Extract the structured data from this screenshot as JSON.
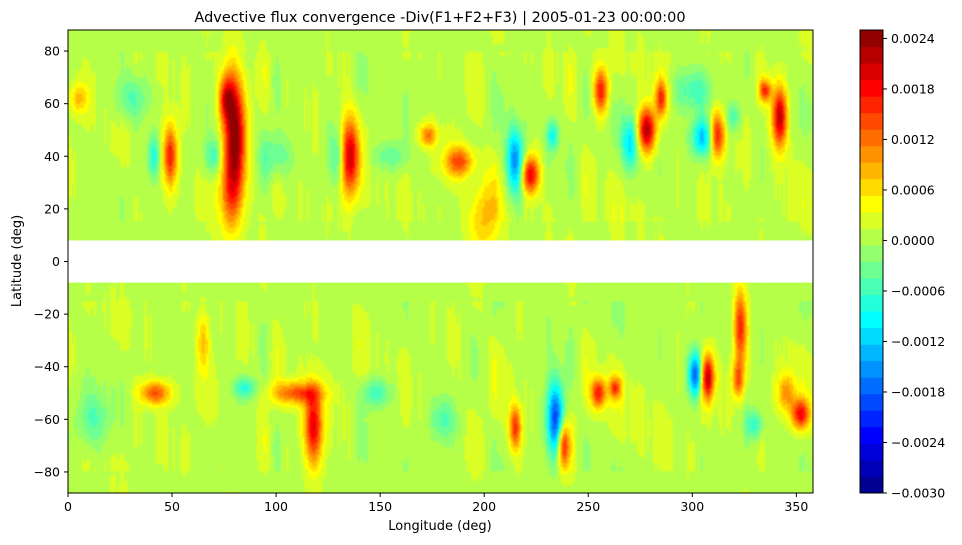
{
  "chart_data": {
    "type": "heatmap",
    "title": "Advective flux convergence -Div(F1+F2+F3) | 2005-01-23 00:00:00",
    "xlabel": "Longitude (deg)",
    "ylabel": "Latitude (deg)",
    "xlim": [
      0,
      358
    ],
    "ylim": [
      -88,
      88
    ],
    "xticks": [
      "0",
      "50",
      "100",
      "150",
      "200",
      "250",
      "300",
      "350"
    ],
    "yticks": [
      "80",
      "60",
      "40",
      "20",
      "0",
      "−20",
      "−40",
      "−60",
      "−80"
    ],
    "masked_lat_band": [
      -8,
      8
    ],
    "colorbar": {
      "colormap": "jet",
      "vmin": -0.003,
      "vmax": 0.0025,
      "ticks": [
        "0.0024",
        "0.0018",
        "0.0012",
        "0.0006",
        "0.0000",
        "−0.0006",
        "−0.0012",
        "−0.0018",
        "−0.0024",
        "−0.0030"
      ]
    },
    "background_value": 0.0001,
    "features": [
      {
        "lon": 80,
        "lat": 48,
        "dlon": 3.5,
        "dlat": 16,
        "value": 0.0024
      },
      {
        "lon": 76,
        "lat": 62,
        "dlon": 2.5,
        "dlat": 6,
        "value": 0.0014
      },
      {
        "lon": 78,
        "lat": 25,
        "dlon": 4,
        "dlat": 10,
        "value": 0.0009
      },
      {
        "lon": 135,
        "lat": 40,
        "dlon": 3,
        "dlat": 10,
        "value": 0.0022
      },
      {
        "lon": 130,
        "lat": 40,
        "dlon": 3,
        "dlat": 8,
        "value": -0.0008
      },
      {
        "lon": 49,
        "lat": 40,
        "dlon": 2.5,
        "dlat": 8,
        "value": 0.0016
      },
      {
        "lon": 41,
        "lat": 40,
        "dlon": 2,
        "dlat": 6,
        "value": -0.0009
      },
      {
        "lon": 70,
        "lat": 40,
        "dlon": 3,
        "dlat": 5,
        "value": -0.0007
      },
      {
        "lon": 215,
        "lat": 38,
        "dlon": 3,
        "dlat": 9,
        "value": -0.0017
      },
      {
        "lon": 222,
        "lat": 33,
        "dlon": 3,
        "dlat": 5,
        "value": 0.0019
      },
      {
        "lon": 233,
        "lat": 48,
        "dlon": 2,
        "dlat": 4,
        "value": -0.0009
      },
      {
        "lon": 200,
        "lat": 18,
        "dlon": 5,
        "dlat": 10,
        "value": 0.0007
      },
      {
        "lon": 188,
        "lat": 38,
        "dlon": 5,
        "dlat": 4,
        "value": 0.0013
      },
      {
        "lon": 173,
        "lat": 48,
        "dlon": 3,
        "dlat": 3,
        "value": 0.0011
      },
      {
        "lon": 256,
        "lat": 65,
        "dlon": 2.5,
        "dlat": 6,
        "value": 0.0016
      },
      {
        "lon": 278,
        "lat": 50,
        "dlon": 3,
        "dlat": 6,
        "value": 0.0022
      },
      {
        "lon": 285,
        "lat": 62,
        "dlon": 2,
        "dlat": 5,
        "value": 0.0015
      },
      {
        "lon": 270,
        "lat": 45,
        "dlon": 2.5,
        "dlat": 7,
        "value": -0.0012
      },
      {
        "lon": 305,
        "lat": 47,
        "dlon": 4,
        "dlat": 5,
        "value": -0.0013
      },
      {
        "lon": 312,
        "lat": 48,
        "dlon": 2.5,
        "dlat": 6,
        "value": 0.0018
      },
      {
        "lon": 320,
        "lat": 55,
        "dlon": 2.5,
        "dlat": 4,
        "value": -0.0006
      },
      {
        "lon": 342,
        "lat": 55,
        "dlon": 2.5,
        "dlat": 8,
        "value": 0.0021
      },
      {
        "lon": 335,
        "lat": 65,
        "dlon": 2,
        "dlat": 3,
        "value": 0.0015
      },
      {
        "lon": 300,
        "lat": 65,
        "dlon": 6,
        "dlat": 6,
        "value": -0.0007
      },
      {
        "lon": 30,
        "lat": 62,
        "dlon": 6,
        "dlat": 6,
        "value": -0.0006
      },
      {
        "lon": 5,
        "lat": 62,
        "dlon": 3,
        "dlat": 4,
        "value": 0.0007
      },
      {
        "lon": 118,
        "lat": -62,
        "dlon": 3,
        "dlat": 10,
        "value": 0.0019
      },
      {
        "lon": 110,
        "lat": -50,
        "dlon": 8,
        "dlat": 3,
        "value": 0.0013
      },
      {
        "lon": 85,
        "lat": -48,
        "dlon": 4,
        "dlat": 3,
        "value": -0.0008
      },
      {
        "lon": 42,
        "lat": -50,
        "dlon": 5,
        "dlat": 3,
        "value": 0.0013
      },
      {
        "lon": 65,
        "lat": -30,
        "dlon": 2,
        "dlat": 8,
        "value": 0.0007
      },
      {
        "lon": 234,
        "lat": -60,
        "dlon": 3,
        "dlat": 10,
        "value": -0.0021
      },
      {
        "lon": 238,
        "lat": -70,
        "dlon": 2,
        "dlat": 6,
        "value": 0.0018
      },
      {
        "lon": 215,
        "lat": -63,
        "dlon": 2,
        "dlat": 6,
        "value": 0.0015
      },
      {
        "lon": 255,
        "lat": -50,
        "dlon": 2.5,
        "dlat": 4,
        "value": 0.0016
      },
      {
        "lon": 263,
        "lat": -48,
        "dlon": 2,
        "dlat": 3,
        "value": 0.0013
      },
      {
        "lon": 302,
        "lat": -43,
        "dlon": 2.5,
        "dlat": 6,
        "value": -0.0021
      },
      {
        "lon": 307,
        "lat": -44,
        "dlon": 2.5,
        "dlat": 6,
        "value": 0.0022
      },
      {
        "lon": 323,
        "lat": -25,
        "dlon": 2,
        "dlat": 10,
        "value": 0.0015
      },
      {
        "lon": 322,
        "lat": -45,
        "dlon": 2,
        "dlat": 5,
        "value": 0.0012
      },
      {
        "lon": 352,
        "lat": -58,
        "dlon": 3,
        "dlat": 4,
        "value": 0.0017
      },
      {
        "lon": 345,
        "lat": -50,
        "dlon": 3,
        "dlat": 5,
        "value": 0.0009
      },
      {
        "lon": 330,
        "lat": -62,
        "dlon": 3,
        "dlat": 4,
        "value": -0.0008
      },
      {
        "lon": 148,
        "lat": -50,
        "dlon": 5,
        "dlat": 4,
        "value": -0.0007
      },
      {
        "lon": 12,
        "lat": -60,
        "dlon": 5,
        "dlat": 8,
        "value": -0.0006
      },
      {
        "lon": 180,
        "lat": -60,
        "dlon": 4,
        "dlat": 6,
        "value": -0.0006
      },
      {
        "lon": 100,
        "lat": 40,
        "dlon": 5,
        "dlat": 6,
        "value": -0.0006
      },
      {
        "lon": 155,
        "lat": 40,
        "dlon": 6,
        "dlat": 4,
        "value": -0.0005
      }
    ]
  }
}
